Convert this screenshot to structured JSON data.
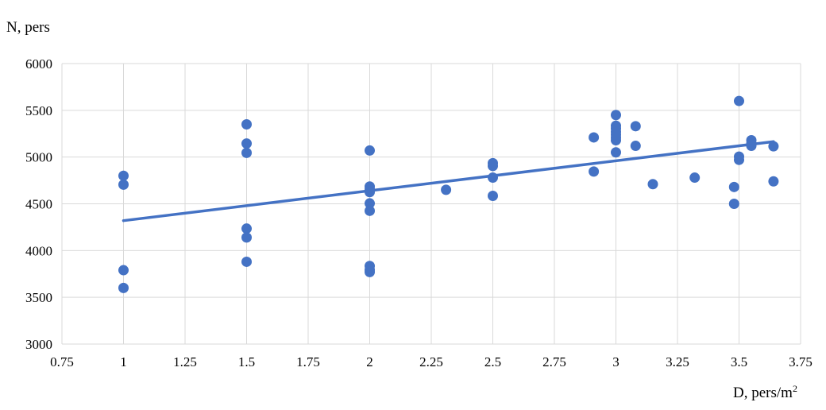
{
  "chart_data": {
    "type": "scatter",
    "title": "",
    "ylabel": "N, pers",
    "xlabel_main": "D, pers/m",
    "xlabel_sup": "2",
    "xlim": [
      0.75,
      3.75
    ],
    "ylim": [
      3000,
      6000
    ],
    "x_ticks": [
      0.75,
      1,
      1.25,
      1.5,
      1.75,
      2,
      2.25,
      2.5,
      2.75,
      3,
      3.25,
      3.5,
      3.75
    ],
    "x_tick_labels": [
      "0.75",
      "1",
      "1.25",
      "1.5",
      "1.75",
      "2",
      "2.25",
      "2.5",
      "2.75",
      "3",
      "3.25",
      "3.5",
      "3.75"
    ],
    "y_ticks": [
      3000,
      3500,
      4000,
      4500,
      5000,
      5500,
      6000
    ],
    "y_tick_labels": [
      "3000",
      "3500",
      "4000",
      "4500",
      "5000",
      "5500",
      "6000"
    ],
    "grid": true,
    "legend": "none",
    "marker_color": "#4472C4",
    "trendline_color": "#4472C4",
    "grid_color": "#D9D9D9",
    "points": [
      {
        "x": 1,
        "y": 4800
      },
      {
        "x": 1,
        "y": 4705
      },
      {
        "x": 1,
        "y": 3790
      },
      {
        "x": 1,
        "y": 3600
      },
      {
        "x": 1.5,
        "y": 5350
      },
      {
        "x": 1.5,
        "y": 5145
      },
      {
        "x": 1.5,
        "y": 5045
      },
      {
        "x": 1.5,
        "y": 4235
      },
      {
        "x": 1.5,
        "y": 4140
      },
      {
        "x": 1.5,
        "y": 3880
      },
      {
        "x": 2,
        "y": 5070
      },
      {
        "x": 2,
        "y": 4685
      },
      {
        "x": 2,
        "y": 4655
      },
      {
        "x": 2,
        "y": 4625
      },
      {
        "x": 2,
        "y": 4505
      },
      {
        "x": 2,
        "y": 4425
      },
      {
        "x": 2,
        "y": 3835
      },
      {
        "x": 2,
        "y": 3795
      },
      {
        "x": 2,
        "y": 3770
      },
      {
        "x": 2.31,
        "y": 4650
      },
      {
        "x": 2.5,
        "y": 4935
      },
      {
        "x": 2.5,
        "y": 4905
      },
      {
        "x": 2.5,
        "y": 4780
      },
      {
        "x": 2.5,
        "y": 4585
      },
      {
        "x": 2.91,
        "y": 5210
      },
      {
        "x": 2.91,
        "y": 4845
      },
      {
        "x": 3,
        "y": 5450
      },
      {
        "x": 3,
        "y": 5335
      },
      {
        "x": 3,
        "y": 5305
      },
      {
        "x": 3,
        "y": 5270
      },
      {
        "x": 3,
        "y": 5240
      },
      {
        "x": 3,
        "y": 5210
      },
      {
        "x": 3,
        "y": 5180
      },
      {
        "x": 3,
        "y": 5050
      },
      {
        "x": 3.08,
        "y": 5330
      },
      {
        "x": 3.08,
        "y": 5120
      },
      {
        "x": 3.15,
        "y": 4710
      },
      {
        "x": 3.32,
        "y": 4780
      },
      {
        "x": 3.48,
        "y": 4680
      },
      {
        "x": 3.48,
        "y": 4500
      },
      {
        "x": 3.5,
        "y": 5600
      },
      {
        "x": 3.5,
        "y": 5005
      },
      {
        "x": 3.5,
        "y": 4970
      },
      {
        "x": 3.55,
        "y": 5180
      },
      {
        "x": 3.55,
        "y": 5145
      },
      {
        "x": 3.55,
        "y": 5120
      },
      {
        "x": 3.64,
        "y": 5115
      },
      {
        "x": 3.64,
        "y": 4740
      }
    ],
    "trendline": {
      "x1": 1,
      "y1": 4320,
      "x2": 3.64,
      "y2": 5165
    }
  }
}
